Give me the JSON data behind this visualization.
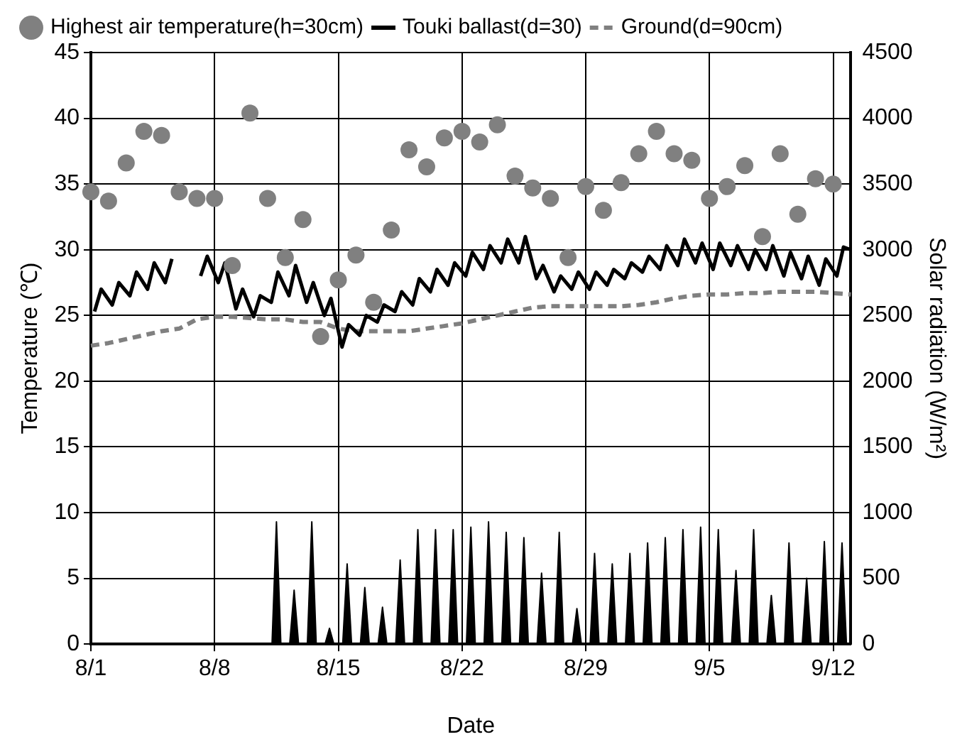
{
  "chart_data": {
    "type": "line",
    "xlabel": "Date",
    "ylabel": "Temperature (℃)",
    "y2label": "Solar radiation (W/m²)",
    "xlim": [
      "--08-01",
      "--09-13"
    ],
    "xticks": [
      {
        "value": "--08-01",
        "label": "8/1"
      },
      {
        "value": "--08-08",
        "label": "8/8"
      },
      {
        "value": "--08-15",
        "label": "8/15"
      },
      {
        "value": "--08-22",
        "label": "8/22"
      },
      {
        "value": "--08-29",
        "label": "8/29"
      },
      {
        "value": "--09-05",
        "label": "9/5"
      },
      {
        "value": "--09-12",
        "label": "9/12"
      }
    ],
    "ylim": [
      0,
      45
    ],
    "yticks": [
      0,
      5,
      10,
      15,
      20,
      25,
      30,
      35,
      40,
      45
    ],
    "y2lim": [
      0,
      4500
    ],
    "y2ticks": [
      0,
      500,
      1000,
      1500,
      2000,
      2500,
      3000,
      3500,
      4000,
      4500
    ],
    "grid": true,
    "legend": "top",
    "series": [
      {
        "name": "Highest air temperature(h=30cm)",
        "type": "scatter",
        "marker": "circle",
        "color": "#808080",
        "x": [
          "--08-01",
          "--08-02",
          "--08-03",
          "--08-04",
          "--08-05",
          "--08-06",
          "--08-07",
          "--08-08",
          "--08-09",
          "--08-10",
          "--08-11",
          "--08-12",
          "--08-13",
          "--08-14",
          "--08-15",
          "--08-16",
          "--08-17",
          "--08-18",
          "--08-19",
          "--08-20",
          "--08-21",
          "--08-22",
          "--08-23",
          "--08-24",
          "--08-25",
          "--08-26",
          "--08-27",
          "--08-28",
          "--08-29",
          "--08-30",
          "--08-31",
          "--09-01",
          "--09-02",
          "--09-03",
          "--09-04",
          "--09-05",
          "--09-06",
          "--09-07",
          "--09-08",
          "--09-09",
          "--09-10",
          "--09-11",
          "--09-12"
        ],
        "values": [
          34.4,
          33.7,
          36.6,
          39.0,
          38.7,
          34.4,
          33.9,
          33.9,
          28.8,
          40.4,
          33.9,
          29.4,
          32.3,
          23.4,
          27.7,
          29.6,
          26.0,
          31.5,
          37.6,
          36.3,
          38.5,
          39.0,
          38.2,
          39.5,
          35.6,
          34.7,
          33.9,
          29.4,
          34.8,
          33.0,
          35.1,
          37.3,
          39.0,
          37.3,
          36.8,
          33.9,
          34.8,
          36.4,
          31.0,
          37.3,
          32.7,
          35.4,
          35.0
        ]
      },
      {
        "name": "Touki ballast(d=30)",
        "type": "line",
        "marker": "none",
        "color": "#000000",
        "x": [
          "--08-01T05:00",
          "--08-01T14:00",
          "--08-02T05:00",
          "--08-02T14:00",
          "--08-03T05:00",
          "--08-03T14:00",
          "--08-04T05:00",
          "--08-04T14:00",
          "--08-05T05:00",
          "--08-05T14:00",
          "--08-06T05:00",
          "--08-06T14:00",
          "--08-07T05:00",
          "--08-07T14:00",
          "--08-08T05:00",
          "--08-08T14:00",
          "--08-09T05:00",
          "--08-09T14:00",
          "--08-10T05:00",
          "--08-10T14:00",
          "--08-11T05:00",
          "--08-11T14:00",
          "--08-12T05:00",
          "--08-12T14:00",
          "--08-13T05:00",
          "--08-13T14:00",
          "--08-14T05:00",
          "--08-14T14:00",
          "--08-15T05:00",
          "--08-15T14:00",
          "--08-16T05:00",
          "--08-16T14:00",
          "--08-17T05:00",
          "--08-17T14:00",
          "--08-18T05:00",
          "--08-18T14:00",
          "--08-19T05:00",
          "--08-19T14:00",
          "--08-20T05:00",
          "--08-20T14:00",
          "--08-21T05:00",
          "--08-21T14:00",
          "--08-22T05:00",
          "--08-22T14:00",
          "--08-23T05:00",
          "--08-23T14:00",
          "--08-24T05:00",
          "--08-24T14:00",
          "--08-25T05:00",
          "--08-25T14:00",
          "--08-26T05:00",
          "--08-26T14:00",
          "--08-27T05:00",
          "--08-27T14:00",
          "--08-28T05:00",
          "--08-28T14:00",
          "--08-29T05:00",
          "--08-29T14:00",
          "--08-30T05:00",
          "--08-30T14:00",
          "--08-31T05:00",
          "--08-31T14:00",
          "--09-01T05:00",
          "--09-01T14:00",
          "--09-02T05:00",
          "--09-02T14:00",
          "--09-03T05:00",
          "--09-03T14:00",
          "--09-04T05:00",
          "--09-04T14:00",
          "--09-05T05:00",
          "--09-05T14:00",
          "--09-06T05:00",
          "--09-06T14:00",
          "--09-07T05:00",
          "--09-07T14:00",
          "--09-08T05:00",
          "--09-08T14:00",
          "--09-09T05:00",
          "--09-09T14:00",
          "--09-10T05:00",
          "--09-10T14:00",
          "--09-11T05:00",
          "--09-11T14:00",
          "--09-12T05:00",
          "--09-12T14:00",
          "--09-13T00:00"
        ],
        "values": [
          25.3,
          27.0,
          25.8,
          27.5,
          26.5,
          28.3,
          27.0,
          29.0,
          27.5,
          29.3,
          null,
          null,
          28.0,
          29.5,
          27.5,
          29.0,
          25.5,
          27.0,
          24.9,
          26.5,
          26.0,
          28.3,
          26.5,
          28.8,
          26.0,
          27.5,
          25.0,
          26.3,
          22.6,
          24.3,
          23.5,
          25.0,
          24.5,
          25.8,
          25.3,
          26.8,
          25.8,
          27.8,
          26.8,
          28.5,
          27.3,
          29.0,
          28.0,
          29.8,
          28.5,
          30.3,
          29.0,
          30.8,
          29.0,
          31.0,
          27.8,
          28.8,
          26.8,
          28.0,
          27.0,
          28.3,
          27.0,
          28.3,
          27.3,
          28.5,
          27.8,
          29.0,
          28.3,
          29.5,
          28.5,
          30.3,
          28.8,
          30.8,
          29.0,
          30.5,
          28.5,
          30.5,
          28.8,
          30.3,
          28.5,
          30.0,
          28.5,
          30.3,
          28.0,
          29.8,
          27.8,
          29.5,
          27.3,
          29.3,
          28.0,
          30.2,
          30.0
        ]
      },
      {
        "name": "Ground(d=90cm)",
        "type": "line",
        "marker": "none",
        "line_style": "dashed",
        "color": "#808080",
        "x": [
          "--08-01",
          "--08-02",
          "--08-03",
          "--08-04",
          "--08-05",
          "--08-06",
          "--08-07",
          "--08-08",
          "--08-09",
          "--08-10",
          "--08-11",
          "--08-12",
          "--08-13",
          "--08-14",
          "--08-15",
          "--08-16",
          "--08-17",
          "--08-18",
          "--08-19",
          "--08-20",
          "--08-21",
          "--08-22",
          "--08-23",
          "--08-24",
          "--08-25",
          "--08-26",
          "--08-27",
          "--08-28",
          "--08-29",
          "--08-30",
          "--08-31",
          "--09-01",
          "--09-02",
          "--09-03",
          "--09-04",
          "--09-05",
          "--09-06",
          "--09-07",
          "--09-08",
          "--09-09",
          "--09-10",
          "--09-11",
          "--09-12",
          "--09-13"
        ],
        "values": [
          22.7,
          22.9,
          23.2,
          23.5,
          23.8,
          24.0,
          24.7,
          24.9,
          24.9,
          24.8,
          24.7,
          24.7,
          24.5,
          24.5,
          24.0,
          23.8,
          23.8,
          23.8,
          23.8,
          24.0,
          24.2,
          24.4,
          24.7,
          25.0,
          25.3,
          25.6,
          25.7,
          25.7,
          25.7,
          25.7,
          25.7,
          25.8,
          26.0,
          26.3,
          26.5,
          26.6,
          26.6,
          26.7,
          26.7,
          26.8,
          26.8,
          26.8,
          26.7,
          26.6
        ]
      },
      {
        "type": "area",
        "axis": "y2",
        "marker": "none",
        "color": "#000000",
        "x": [
          "--08-11T06:00",
          "--08-11T12:00",
          "--08-11T18:00",
          "--08-12T06:00",
          "--08-12T12:00",
          "--08-12T18:00",
          "--08-13T06:00",
          "--08-13T12:00",
          "--08-13T18:00",
          "--08-14T06:00",
          "--08-14T12:00",
          "--08-14T18:00",
          "--08-15T06:00",
          "--08-15T12:00",
          "--08-15T18:00",
          "--08-16T06:00",
          "--08-16T12:00",
          "--08-16T18:00",
          "--08-17T06:00",
          "--08-17T12:00",
          "--08-17T18:00",
          "--08-18T06:00",
          "--08-18T12:00",
          "--08-18T18:00",
          "--08-19T06:00",
          "--08-19T12:00",
          "--08-19T18:00",
          "--08-20T06:00",
          "--08-20T12:00",
          "--08-20T18:00",
          "--08-21T06:00",
          "--08-21T12:00",
          "--08-21T18:00",
          "--08-22T06:00",
          "--08-22T12:00",
          "--08-22T18:00",
          "--08-23T06:00",
          "--08-23T12:00",
          "--08-23T18:00",
          "--08-24T06:00",
          "--08-24T12:00",
          "--08-24T18:00",
          "--08-25T06:00",
          "--08-25T12:00",
          "--08-25T18:00",
          "--08-26T06:00",
          "--08-26T12:00",
          "--08-26T18:00",
          "--08-27T06:00",
          "--08-27T12:00",
          "--08-27T18:00",
          "--08-28T06:00",
          "--08-28T12:00",
          "--08-28T18:00",
          "--08-29T06:00",
          "--08-29T12:00",
          "--08-29T18:00",
          "--08-30T06:00",
          "--08-30T12:00",
          "--08-30T18:00",
          "--08-31T06:00",
          "--08-31T12:00",
          "--08-31T18:00",
          "--09-01T06:00",
          "--09-01T12:00",
          "--09-01T18:00",
          "--09-02T06:00",
          "--09-02T12:00",
          "--09-02T18:00",
          "--09-03T06:00",
          "--09-03T12:00",
          "--09-03T18:00",
          "--09-04T06:00",
          "--09-04T12:00",
          "--09-04T18:00",
          "--09-05T06:00",
          "--09-05T12:00",
          "--09-05T18:00",
          "--09-06T06:00",
          "--09-06T12:00",
          "--09-06T18:00",
          "--09-07T06:00",
          "--09-07T12:00",
          "--09-07T18:00",
          "--09-08T06:00",
          "--09-08T12:00",
          "--09-08T18:00",
          "--09-09T06:00",
          "--09-09T12:00",
          "--09-09T18:00",
          "--09-10T06:00",
          "--09-10T12:00",
          "--09-10T18:00",
          "--09-11T06:00",
          "--09-11T12:00",
          "--09-11T18:00",
          "--09-12T06:00",
          "--09-12T12:00",
          "--09-12T18:00"
        ],
        "values": [
          0,
          930,
          0,
          0,
          410,
          0,
          0,
          930,
          0,
          0,
          120,
          0,
          0,
          610,
          0,
          0,
          430,
          0,
          0,
          280,
          0,
          0,
          640,
          0,
          0,
          870,
          0,
          0,
          870,
          0,
          0,
          870,
          0,
          0,
          890,
          0,
          0,
          930,
          0,
          0,
          850,
          0,
          0,
          810,
          0,
          0,
          540,
          0,
          0,
          850,
          0,
          0,
          270,
          0,
          0,
          690,
          0,
          0,
          610,
          0,
          0,
          690,
          0,
          0,
          770,
          0,
          0,
          810,
          0,
          0,
          870,
          0,
          0,
          890,
          0,
          0,
          870,
          0,
          0,
          560,
          0,
          0,
          870,
          0,
          0,
          370,
          0,
          0,
          770,
          0,
          0,
          500,
          0,
          0,
          780,
          0,
          0,
          770,
          0
        ]
      }
    ]
  }
}
